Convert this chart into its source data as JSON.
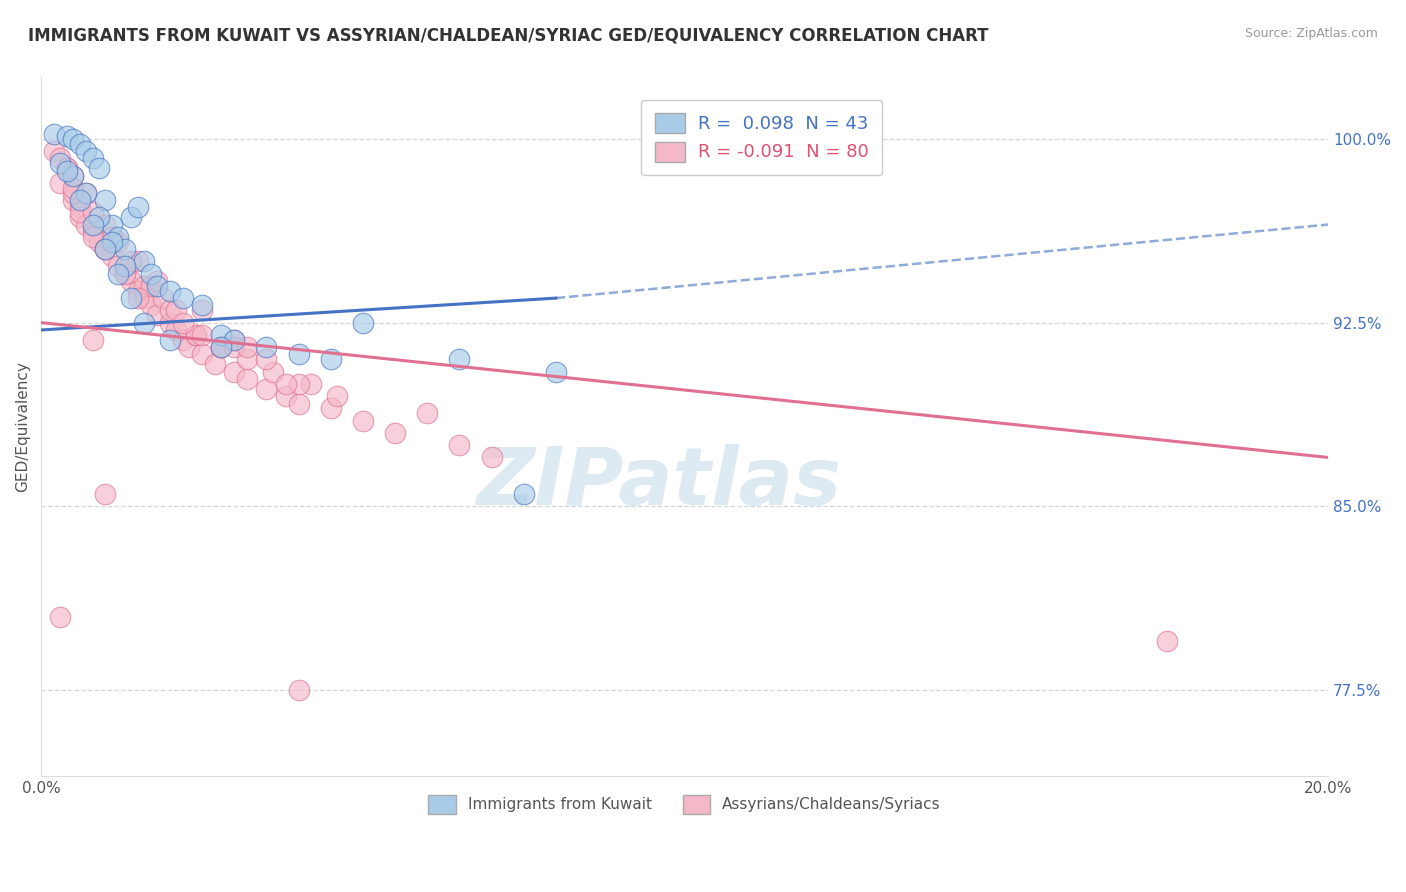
{
  "title": "IMMIGRANTS FROM KUWAIT VS ASSYRIAN/CHALDEAN/SYRIAC GED/EQUIVALENCY CORRELATION CHART",
  "source": "Source: ZipAtlas.com",
  "ylabel": "GED/Equivalency",
  "yticks": [
    77.5,
    85.0,
    92.5,
    100.0
  ],
  "ytick_labels": [
    "77.5%",
    "85.0%",
    "92.5%",
    "100.0%"
  ],
  "xmin": 0.0,
  "xmax": 20.0,
  "ymin": 74.0,
  "ymax": 102.5,
  "legend_r1": "R =  0.098",
  "legend_n1": "N = 43",
  "legend_r2": "R = -0.091",
  "legend_n2": "N = 80",
  "legend_label1": "Immigrants from Kuwait",
  "legend_label2": "Assyrians/Chaldeans/Syriacs",
  "color_blue": "#a8cce8",
  "color_pink": "#f4b8c8",
  "color_blue_line": "#4472c4",
  "color_pink_line": "#e07090",
  "color_blue_text": "#4472c4",
  "color_pink_text": "#e05070",
  "watermark": "ZIPatlas",
  "watermark_color": "#c8dce8",
  "blue_scatter_x": [
    0.2,
    0.4,
    0.5,
    0.6,
    0.7,
    0.8,
    0.9,
    1.0,
    1.1,
    1.2,
    1.3,
    1.4,
    1.5,
    1.6,
    1.7,
    1.8,
    2.0,
    2.2,
    2.5,
    2.8,
    3.0,
    3.5,
    4.0,
    4.5,
    5.0,
    6.5,
    7.5,
    0.3,
    0.5,
    0.7,
    0.9,
    1.1,
    1.3,
    0.4,
    0.6,
    0.8,
    1.0,
    1.2,
    1.4,
    1.6,
    2.0,
    2.8,
    8.0
  ],
  "blue_scatter_y": [
    100.2,
    100.1,
    100.0,
    99.8,
    99.5,
    99.2,
    98.8,
    97.5,
    96.5,
    96.0,
    95.5,
    96.8,
    97.2,
    95.0,
    94.5,
    94.0,
    93.8,
    93.5,
    93.2,
    92.0,
    91.8,
    91.5,
    91.2,
    91.0,
    92.5,
    91.0,
    85.5,
    99.0,
    98.5,
    97.8,
    96.8,
    95.8,
    94.8,
    98.7,
    97.5,
    96.5,
    95.5,
    94.5,
    93.5,
    92.5,
    91.8,
    91.5,
    90.5
  ],
  "pink_scatter_x": [
    0.2,
    0.3,
    0.4,
    0.5,
    0.5,
    0.6,
    0.6,
    0.7,
    0.7,
    0.8,
    0.9,
    1.0,
    1.0,
    1.1,
    1.2,
    1.2,
    1.3,
    1.4,
    1.5,
    1.5,
    1.6,
    1.7,
    1.8,
    1.9,
    2.0,
    2.1,
    2.2,
    2.3,
    2.4,
    2.5,
    2.7,
    2.8,
    3.0,
    3.0,
    3.2,
    3.5,
    3.8,
    4.0,
    4.2,
    4.5,
    5.0,
    5.5,
    6.0,
    6.5,
    7.0,
    0.4,
    0.6,
    0.8,
    1.0,
    1.3,
    1.6,
    2.0,
    2.4,
    2.8,
    3.2,
    3.6,
    0.3,
    0.5,
    0.8,
    1.1,
    1.4,
    1.7,
    2.1,
    2.5,
    3.0,
    3.5,
    4.0,
    4.6,
    1.5,
    2.2,
    3.8,
    17.5,
    1.8,
    0.5,
    0.8,
    2.5,
    3.2,
    4.0,
    0.3,
    1.0
  ],
  "pink_scatter_y": [
    99.5,
    99.2,
    98.8,
    98.5,
    97.5,
    97.2,
    96.8,
    96.5,
    97.8,
    96.2,
    95.8,
    95.5,
    96.5,
    95.2,
    94.8,
    95.8,
    94.5,
    94.2,
    93.8,
    95.0,
    93.5,
    93.2,
    92.8,
    93.5,
    92.5,
    92.2,
    91.8,
    91.5,
    92.0,
    91.2,
    90.8,
    91.5,
    90.5,
    91.8,
    90.2,
    89.8,
    89.5,
    89.2,
    90.0,
    89.0,
    88.5,
    88.0,
    88.8,
    87.5,
    87.0,
    98.8,
    97.0,
    96.0,
    95.5,
    94.5,
    94.0,
    93.0,
    92.0,
    91.5,
    91.0,
    90.5,
    98.2,
    97.8,
    97.0,
    96.0,
    95.0,
    94.0,
    93.0,
    92.0,
    91.5,
    91.0,
    90.0,
    89.5,
    93.5,
    92.5,
    90.0,
    79.5,
    94.2,
    98.0,
    91.8,
    93.0,
    91.5,
    77.5,
    80.5,
    85.5
  ],
  "blue_line_x0": 0.0,
  "blue_line_x1": 8.0,
  "blue_line_y0": 92.2,
  "blue_line_y1": 93.5,
  "blue_dash_x0": 8.0,
  "blue_dash_x1": 20.0,
  "blue_dash_y0": 93.5,
  "blue_dash_y1": 96.5,
  "pink_line_x0": 0.0,
  "pink_line_x1": 20.0,
  "pink_line_y0": 92.5,
  "pink_line_y1": 87.0
}
